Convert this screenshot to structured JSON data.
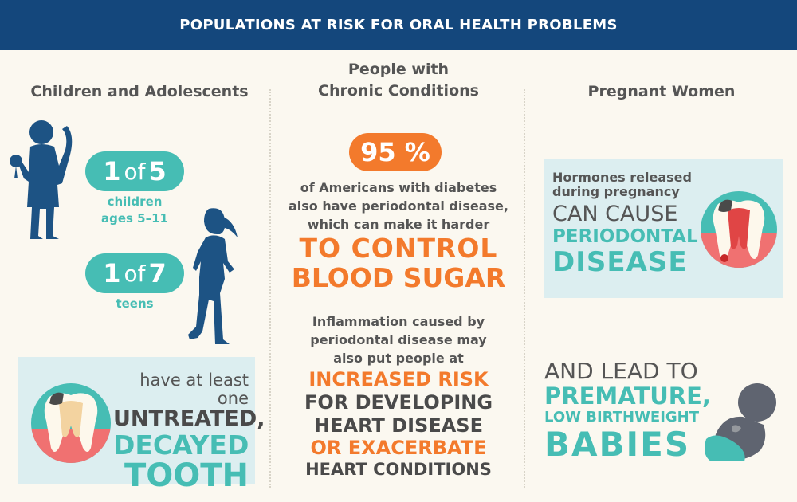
{
  "banner": {
    "title": "POPULATIONS AT RISK FOR ORAL HEALTH PROBLEMS"
  },
  "columns": {
    "children": {
      "heading": "Children and Adolescents",
      "stat1": {
        "num": "1",
        "of": "of",
        "den": "5",
        "caption_line1": "children",
        "caption_line2": "ages 5–11"
      },
      "stat2": {
        "num": "1",
        "of": "of",
        "den": "7",
        "caption": "teens"
      },
      "panel": {
        "line1": "have at least one",
        "line2": "UNTREATED,",
        "line3": "DECAYED",
        "line4": "TOOTH"
      }
    },
    "chronic": {
      "heading_line1": "People with",
      "heading_line2": "Chronic Conditions",
      "percent": "95 %",
      "body_line1": "of Americans with diabetes",
      "body_line2": "also have periodontal disease,",
      "body_line3": "which can make it harder",
      "emph_line1": "TO CONTROL",
      "emph_line2": "BLOOD SUGAR",
      "infl_line1": "Inflammation caused by",
      "infl_line2": "periodontal disease may",
      "infl_line3": "also put people at",
      "risk_line1": "INCREASED RISK",
      "risk_line2": "FOR DEVELOPING",
      "risk_line3": "HEART DISEASE",
      "risk_line4": "OR EXACERBATE",
      "risk_line5": "HEART CONDITIONS"
    },
    "pregnant": {
      "heading": "Pregnant Women",
      "panel": {
        "line1": "Hormones released",
        "line2": "during pregnancy",
        "line3": "CAN CAUSE",
        "line4": "PERIODONTAL",
        "line5": "DISEASE"
      },
      "lead_line1": "AND LEAD TO",
      "lead_line2": "PREMATURE,",
      "lead_line3": "LOW BIRTHWEIGHT",
      "lead_line4": "BABIES"
    }
  },
  "colors": {
    "navy": "#14477c",
    "teal": "#46bdb4",
    "orange": "#f37a2c",
    "panel": "#dceef0",
    "silhouette": "#1d5384",
    "background": "#fbf8f0"
  },
  "icons": [
    "child-silhouette-icon",
    "teen-silhouette-icon",
    "decayed-tooth-icon",
    "inflamed-tooth-icon",
    "fetus-icon"
  ]
}
